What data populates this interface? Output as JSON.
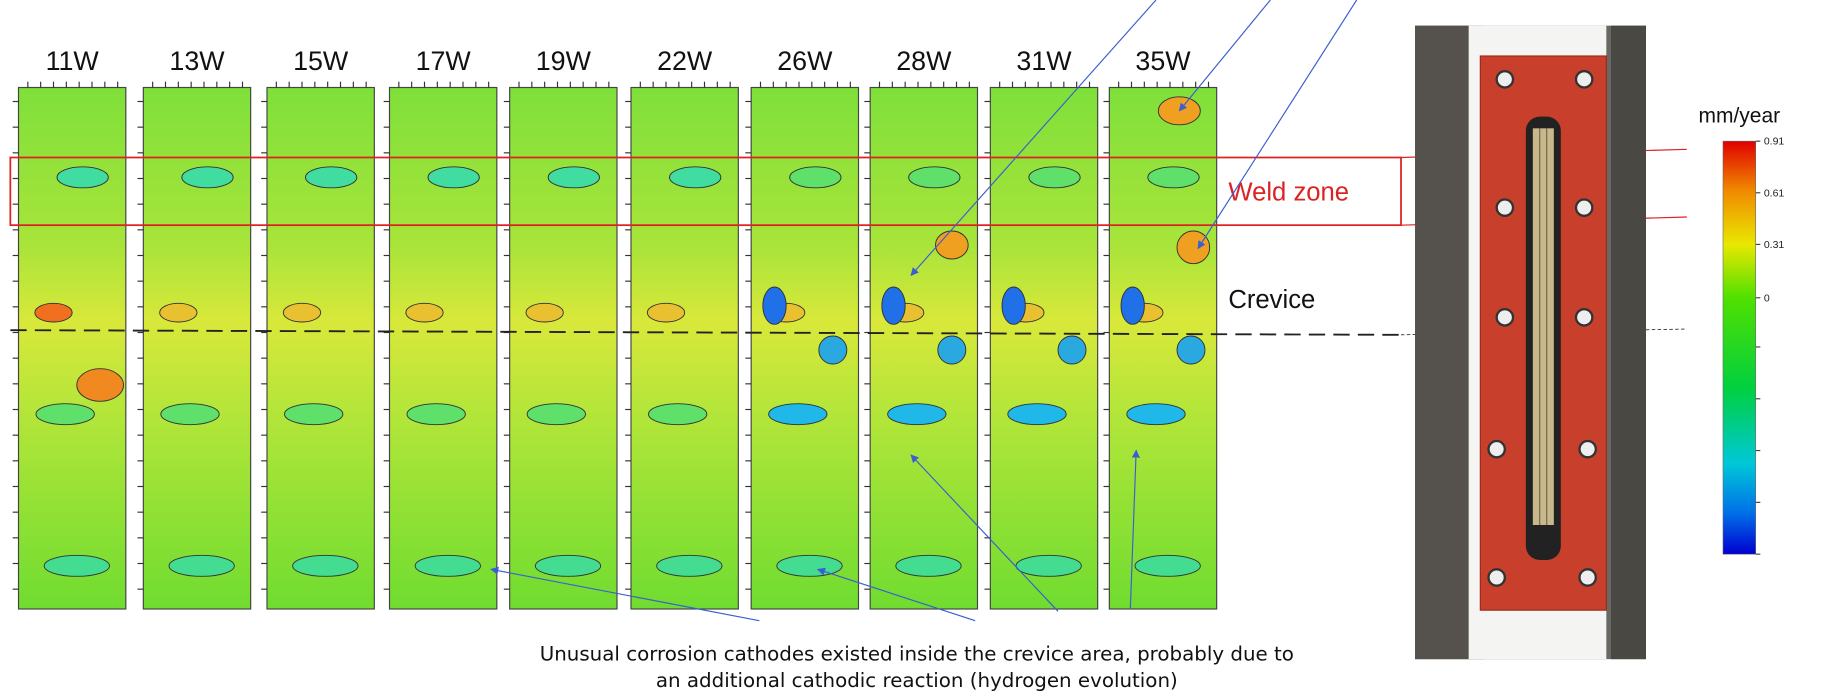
{
  "panels": [
    "11W",
    "13W",
    "15W",
    "17W",
    "19W",
    "22W",
    "26W",
    "28W",
    "31W",
    "35W"
  ],
  "annotations": {
    "weld_zone": "Weld zone",
    "crevice": "Crevice"
  },
  "caption": [
    "Unusual corrosion cathodes existed inside the crevice area, probably due to",
    "an additional cathodic reaction (hydrogen evolution)"
  ],
  "colorbar": {
    "title": "mm/year",
    "range": [
      -1.49,
      0.91
    ],
    "ticks": [
      0.91,
      0.61,
      0.31,
      0
    ]
  }
}
